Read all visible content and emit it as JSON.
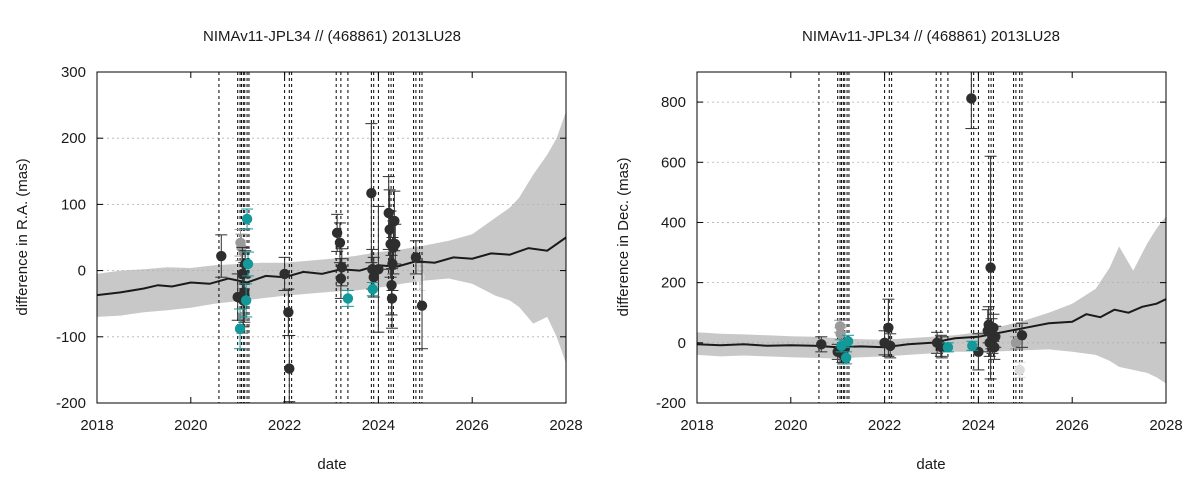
{
  "colors": {
    "band": "#c8c8c8",
    "mean": "#1a1a1a",
    "point_dark": "#2e2e2e",
    "point_grey": "#9a9a9a",
    "point_teal": "#13999a",
    "point_light": "#dcdcdc",
    "grid": "#b0b0b0",
    "epoch_line": "#000000"
  },
  "chart_data": [
    {
      "type": "scatter",
      "title": "NIMAv11-JPL34 // (468861) 2013LU28",
      "xlabel": "date",
      "ylabel": "difference in R.A. (mas)",
      "xlim": [
        2018,
        2028
      ],
      "ylim": [
        -200,
        300
      ],
      "xticks": [
        "2018",
        "2020",
        "2022",
        "2024",
        "2026",
        "2028"
      ],
      "yticks": [
        "-200",
        "-100",
        "0",
        "100",
        "200",
        "300"
      ],
      "grid": "horizontal dashed",
      "epoch_lines": [
        2020.6,
        2021.0,
        2021.05,
        2021.08,
        2021.12,
        2021.15,
        2021.2,
        2021.24,
        2022.0,
        2022.1,
        2022.15,
        2023.1,
        2023.2,
        2023.35,
        2023.85,
        2023.9,
        2024.0,
        2024.22,
        2024.27,
        2024.32,
        2024.75,
        2024.8,
        2024.88,
        2024.93
      ],
      "mean": {
        "x": [
          2018.0,
          2018.5,
          2019.0,
          2019.3,
          2019.6,
          2020.0,
          2020.4,
          2020.8,
          2021.2,
          2021.6,
          2022.0,
          2022.4,
          2022.8,
          2023.2,
          2023.6,
          2024.0,
          2024.4,
          2024.8,
          2025.2,
          2025.6,
          2026.0,
          2026.4,
          2026.8,
          2027.2,
          2027.6,
          2028.0
        ],
        "y": [
          -37,
          -33,
          -27,
          -22,
          -24,
          -18,
          -20,
          -12,
          -18,
          -8,
          -10,
          -2,
          -5,
          2,
          0,
          8,
          6,
          14,
          12,
          20,
          18,
          26,
          24,
          34,
          30,
          50
        ]
      },
      "band": {
        "x": [
          2018.0,
          2018.5,
          2019.0,
          2019.5,
          2020.0,
          2020.5,
          2021.0,
          2021.5,
          2022.0,
          2022.5,
          2023.0,
          2023.5,
          2024.0,
          2024.5,
          2025.0,
          2025.5,
          2026.0,
          2026.5,
          2026.8,
          2027.0,
          2027.3,
          2027.6,
          2027.8,
          2028.0
        ],
        "upper": [
          -5,
          0,
          2,
          5,
          4,
          8,
          10,
          12,
          12,
          15,
          18,
          22,
          28,
          32,
          38,
          45,
          55,
          80,
          95,
          110,
          145,
          175,
          200,
          240
        ],
        "lower": [
          -70,
          -68,
          -63,
          -60,
          -56,
          -50,
          -46,
          -42,
          -38,
          -35,
          -32,
          -30,
          -26,
          -20,
          -15,
          -12,
          -20,
          -38,
          -45,
          -55,
          -80,
          -70,
          -100,
          -140
        ]
      },
      "points": [
        {
          "x": 2020.65,
          "y": 22,
          "err": 32,
          "kind": "dark"
        },
        {
          "x": 2021.0,
          "y": -40,
          "err": 35,
          "kind": "dark"
        },
        {
          "x": 2021.05,
          "y": -88,
          "err": 30,
          "kind": "teal"
        },
        {
          "x": 2021.06,
          "y": 42,
          "err": 20,
          "kind": "grey"
        },
        {
          "x": 2021.08,
          "y": 35,
          "err": 20,
          "kind": "grey"
        },
        {
          "x": 2021.1,
          "y": -5,
          "err": 40,
          "kind": "dark"
        },
        {
          "x": 2021.1,
          "y": -70,
          "err": 25,
          "kind": "grey"
        },
        {
          "x": 2021.12,
          "y": -45,
          "err": 40,
          "kind": "dark"
        },
        {
          "x": 2021.14,
          "y": -33,
          "err": 45,
          "kind": "dark"
        },
        {
          "x": 2021.16,
          "y": 10,
          "err": 20,
          "kind": "dark"
        },
        {
          "x": 2021.18,
          "y": -45,
          "err": 25,
          "kind": "teal"
        },
        {
          "x": 2021.2,
          "y": 78,
          "err": 15,
          "kind": "teal"
        },
        {
          "x": 2021.22,
          "y": 10,
          "err": 18,
          "kind": "teal"
        },
        {
          "x": 2022.0,
          "y": -5,
          "err": 25,
          "kind": "dark"
        },
        {
          "x": 2022.08,
          "y": -63,
          "err": 35,
          "kind": "dark"
        },
        {
          "x": 2022.1,
          "y": -148,
          "err": 50,
          "kind": "dark"
        },
        {
          "x": 2023.12,
          "y": 57,
          "err": 28,
          "kind": "dark"
        },
        {
          "x": 2023.18,
          "y": 42,
          "err": 30,
          "kind": "dark"
        },
        {
          "x": 2023.2,
          "y": -12,
          "err": 30,
          "kind": "dark"
        },
        {
          "x": 2023.22,
          "y": 5,
          "err": 28,
          "kind": "dark"
        },
        {
          "x": 2023.35,
          "y": -42,
          "err": 12,
          "kind": "teal"
        },
        {
          "x": 2023.85,
          "y": 117,
          "err": 105,
          "kind": "dark"
        },
        {
          "x": 2023.87,
          "y": 2,
          "err": 30,
          "kind": "dark"
        },
        {
          "x": 2023.9,
          "y": -10,
          "err": 30,
          "kind": "dark"
        },
        {
          "x": 2023.88,
          "y": -28,
          "err": 10,
          "kind": "teal"
        },
        {
          "x": 2024.0,
          "y": 2,
          "err": 95,
          "kind": "dark"
        },
        {
          "x": 2024.22,
          "y": 87,
          "err": 55,
          "kind": "dark"
        },
        {
          "x": 2024.24,
          "y": 62,
          "err": 60,
          "kind": "dark"
        },
        {
          "x": 2024.26,
          "y": 40,
          "err": 50,
          "kind": "dark"
        },
        {
          "x": 2024.28,
          "y": -22,
          "err": 45,
          "kind": "dark"
        },
        {
          "x": 2024.29,
          "y": -42,
          "err": 45,
          "kind": "dark"
        },
        {
          "x": 2024.3,
          "y": 10,
          "err": 40,
          "kind": "dark"
        },
        {
          "x": 2024.32,
          "y": 35,
          "err": 40,
          "kind": "dark"
        },
        {
          "x": 2024.34,
          "y": 75,
          "err": 45,
          "kind": "dark"
        },
        {
          "x": 2024.36,
          "y": 40,
          "err": 30,
          "kind": "dark"
        },
        {
          "x": 2024.8,
          "y": 20,
          "err": 25,
          "kind": "dark"
        },
        {
          "x": 2024.88,
          "y": -10,
          "err": 20,
          "kind": "light"
        },
        {
          "x": 2024.93,
          "y": -53,
          "err": 65,
          "kind": "dark"
        }
      ]
    },
    {
      "type": "scatter",
      "title": "NIMAv11-JPL34 // (468861) 2013LU28",
      "xlabel": "date",
      "ylabel": "difference in Dec. (mas)",
      "xlim": [
        2018,
        2028
      ],
      "ylim": [
        -200,
        900
      ],
      "xticks": [
        "2018",
        "2020",
        "2022",
        "2024",
        "2026",
        "2028"
      ],
      "yticks": [
        "-200",
        "0",
        "200",
        "400",
        "600",
        "800"
      ],
      "grid": "horizontal dashed",
      "epoch_lines": [
        2020.6,
        2021.0,
        2021.05,
        2021.08,
        2021.12,
        2021.15,
        2021.2,
        2021.24,
        2022.0,
        2022.1,
        2022.15,
        2023.1,
        2023.2,
        2023.35,
        2023.85,
        2023.9,
        2024.0,
        2024.22,
        2024.27,
        2024.32,
        2024.75,
        2024.8,
        2024.88,
        2024.93
      ],
      "mean": {
        "x": [
          2018.0,
          2018.5,
          2019.0,
          2019.5,
          2020.0,
          2020.5,
          2021.0,
          2021.5,
          2022.0,
          2022.5,
          2023.0,
          2023.5,
          2024.0,
          2024.5,
          2025.0,
          2025.5,
          2026.0,
          2026.3,
          2026.6,
          2026.9,
          2027.2,
          2027.5,
          2027.8,
          2028.0
        ],
        "y": [
          -5,
          -8,
          -5,
          -10,
          -8,
          -10,
          -15,
          -12,
          -15,
          -5,
          0,
          15,
          20,
          35,
          50,
          65,
          70,
          95,
          85,
          110,
          100,
          120,
          130,
          145
        ]
      },
      "band": {
        "x": [
          2018.0,
          2018.5,
          2019.0,
          2019.5,
          2020.0,
          2020.5,
          2021.0,
          2021.5,
          2022.0,
          2022.5,
          2023.0,
          2023.5,
          2024.0,
          2024.5,
          2025.0,
          2025.5,
          2026.0,
          2026.5,
          2026.8,
          2027.0,
          2027.3,
          2027.6,
          2027.8,
          2028.0
        ],
        "upper": [
          35,
          30,
          28,
          25,
          22,
          20,
          15,
          12,
          10,
          15,
          20,
          25,
          35,
          55,
          75,
          100,
          130,
          180,
          250,
          320,
          240,
          330,
          380,
          420
        ],
        "lower": [
          -40,
          -45,
          -42,
          -45,
          -48,
          -50,
          -52,
          -48,
          -45,
          -40,
          -35,
          -30,
          -30,
          -28,
          -25,
          -22,
          -30,
          -40,
          -60,
          -80,
          -90,
          -100,
          -115,
          -135
        ]
      },
      "points": [
        {
          "x": 2020.65,
          "y": -5,
          "err": 25,
          "kind": "dark"
        },
        {
          "x": 2021.0,
          "y": -30,
          "err": 25,
          "kind": "dark"
        },
        {
          "x": 2021.05,
          "y": 55,
          "err": 20,
          "kind": "grey"
        },
        {
          "x": 2021.06,
          "y": 30,
          "err": 20,
          "kind": "grey"
        },
        {
          "x": 2021.08,
          "y": -10,
          "err": 20,
          "kind": "teal"
        },
        {
          "x": 2021.1,
          "y": -35,
          "err": 30,
          "kind": "dark"
        },
        {
          "x": 2021.12,
          "y": -40,
          "err": 30,
          "kind": "dark"
        },
        {
          "x": 2021.15,
          "y": -20,
          "err": 30,
          "kind": "dark"
        },
        {
          "x": 2021.18,
          "y": -50,
          "err": 20,
          "kind": "teal"
        },
        {
          "x": 2021.22,
          "y": 5,
          "err": 20,
          "kind": "teal"
        },
        {
          "x": 2022.0,
          "y": 0,
          "err": 40,
          "kind": "dark"
        },
        {
          "x": 2022.08,
          "y": 50,
          "err": 95,
          "kind": "dark"
        },
        {
          "x": 2022.12,
          "y": -10,
          "err": 40,
          "kind": "dark"
        },
        {
          "x": 2023.12,
          "y": 0,
          "err": 35,
          "kind": "dark"
        },
        {
          "x": 2023.2,
          "y": -10,
          "err": 35,
          "kind": "dark"
        },
        {
          "x": 2023.22,
          "y": -15,
          "err": 35,
          "kind": "dark"
        },
        {
          "x": 2023.35,
          "y": -15,
          "err": 15,
          "kind": "teal"
        },
        {
          "x": 2023.85,
          "y": 812,
          "err": 100,
          "kind": "dark"
        },
        {
          "x": 2023.87,
          "y": -10,
          "err": 15,
          "kind": "teal"
        },
        {
          "x": 2024.0,
          "y": -30,
          "err": 60,
          "kind": "dark"
        },
        {
          "x": 2024.2,
          "y": 40,
          "err": 70,
          "kind": "dark"
        },
        {
          "x": 2024.22,
          "y": 60,
          "err": 60,
          "kind": "dark"
        },
        {
          "x": 2024.24,
          "y": 0,
          "err": 45,
          "kind": "dark"
        },
        {
          "x": 2024.26,
          "y": 250,
          "err": 370,
          "kind": "dark"
        },
        {
          "x": 2024.28,
          "y": 30,
          "err": 50,
          "kind": "dark"
        },
        {
          "x": 2024.3,
          "y": 10,
          "err": 45,
          "kind": "dark"
        },
        {
          "x": 2024.32,
          "y": 50,
          "err": 45,
          "kind": "dark"
        },
        {
          "x": 2024.34,
          "y": -15,
          "err": 40,
          "kind": "dark"
        },
        {
          "x": 2024.36,
          "y": 20,
          "err": 35,
          "kind": "dark"
        },
        {
          "x": 2024.8,
          "y": 0,
          "err": 20,
          "kind": "grey"
        },
        {
          "x": 2024.88,
          "y": -90,
          "err": 25,
          "kind": "light"
        },
        {
          "x": 2024.93,
          "y": 25,
          "err": 40,
          "kind": "dark"
        }
      ]
    }
  ]
}
